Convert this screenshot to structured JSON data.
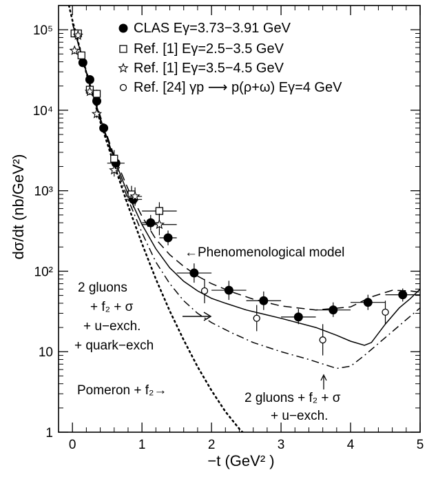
{
  "chart_data": {
    "type": "scatter",
    "ylabel": "dσ/dt (nb/GeV²)",
    "xlabel": "−t  (GeV² )",
    "xlim": [
      -0.2,
      5
    ],
    "ylim": [
      1,
      200000
    ],
    "yscale": "log",
    "x_ticks": [
      {
        "v": 0,
        "label": "0"
      },
      {
        "v": 1,
        "label": "1"
      },
      {
        "v": 2,
        "label": "2"
      },
      {
        "v": 3,
        "label": "3"
      },
      {
        "v": 4,
        "label": "4"
      },
      {
        "v": 5,
        "label": "5"
      }
    ],
    "y_ticks": [
      {
        "v": 1,
        "label": "1"
      },
      {
        "v": 10,
        "label": "10"
      },
      {
        "v": 100,
        "label": "10²"
      },
      {
        "v": 1000,
        "label": "10³"
      },
      {
        "v": 10000,
        "label": "10⁴"
      },
      {
        "v": 100000,
        "label": "10⁵"
      }
    ],
    "legend": [
      {
        "marker": "filled-circle",
        "text": "CLAS Eγ=3.73−3.91 GeV"
      },
      {
        "marker": "open-square",
        "text": "Ref. [1] Eγ=2.5−3.5 GeV"
      },
      {
        "marker": "open-star",
        "text": "Ref. [1] Eγ=3.5−4.5 GeV"
      },
      {
        "marker": "open-circle",
        "text": "Ref. [24] γp ⟶ p(ρ+ω) Eγ=4 GeV"
      }
    ],
    "series": [
      {
        "name": "CLAS Eγ=3.73−3.91 GeV",
        "marker": "filled-circle",
        "points": [
          {
            "x": 0.15,
            "y": 39000,
            "xerr": 0.05,
            "ylo": 35000,
            "yhi": 43000
          },
          {
            "x": 0.25,
            "y": 24000,
            "xerr": 0.05,
            "ylo": 21000,
            "yhi": 27000
          },
          {
            "x": 0.35,
            "y": 13000,
            "xerr": 0.05,
            "ylo": 11500,
            "yhi": 14800
          },
          {
            "x": 0.45,
            "y": 6000,
            "xerr": 0.05,
            "ylo": 5200,
            "yhi": 6900
          },
          {
            "x": 0.625,
            "y": 2200,
            "xerr": 0.125,
            "ylo": 1800,
            "yhi": 2700
          },
          {
            "x": 0.875,
            "y": 780,
            "xerr": 0.125,
            "ylo": 620,
            "yhi": 980
          },
          {
            "x": 1.125,
            "y": 400,
            "xerr": 0.125,
            "ylo": 320,
            "yhi": 500
          },
          {
            "x": 1.375,
            "y": 260,
            "xerr": 0.125,
            "ylo": 210,
            "yhi": 320
          },
          {
            "x": 1.75,
            "y": 95,
            "xerr": 0.25,
            "ylo": 72,
            "yhi": 125
          },
          {
            "x": 2.25,
            "y": 58,
            "xerr": 0.25,
            "ylo": 44,
            "yhi": 76
          },
          {
            "x": 2.75,
            "y": 43,
            "xerr": 0.25,
            "ylo": 33,
            "yhi": 56
          },
          {
            "x": 3.25,
            "y": 27,
            "xerr": 0.25,
            "ylo": 22,
            "yhi": 34
          },
          {
            "x": 3.75,
            "y": 33,
            "xerr": 0.25,
            "ylo": 27,
            "yhi": 41
          },
          {
            "x": 4.25,
            "y": 41,
            "xerr": 0.25,
            "ylo": 33,
            "yhi": 51
          },
          {
            "x": 4.75,
            "y": 51,
            "xerr": 0.25,
            "ylo": 42,
            "yhi": 61
          }
        ]
      },
      {
        "name": "Ref. [1] Eγ=2.5−3.5 GeV",
        "marker": "open-square",
        "points": [
          {
            "x": 0.03,
            "y": 90000,
            "xerr": 0,
            "ylo": 80000,
            "yhi": 100000
          },
          {
            "x": 0.08,
            "y": 90000,
            "xerr": 0,
            "ylo": 80000,
            "yhi": 100000
          },
          {
            "x": 0.13,
            "y": 48000,
            "xerr": 0,
            "ylo": 43000,
            "yhi": 53000
          },
          {
            "x": 0.25,
            "y": 18000,
            "xerr": 0,
            "ylo": 16000,
            "yhi": 20000
          },
          {
            "x": 0.35,
            "y": 16000,
            "xerr": 0,
            "ylo": 14000,
            "yhi": 18000
          },
          {
            "x": 0.6,
            "y": 2500,
            "xerr": 0,
            "ylo": 2000,
            "yhi": 3200
          },
          {
            "x": 0.85,
            "y": 900,
            "xerr": 0,
            "ylo": 700,
            "yhi": 1150
          },
          {
            "x": 1.25,
            "y": 560,
            "xerr": 0.25,
            "ylo": 430,
            "yhi": 720
          }
        ]
      },
      {
        "name": "Ref. [1] Eγ=3.5−4.5 GeV",
        "marker": "open-star",
        "points": [
          {
            "x": 0.03,
            "y": 55000,
            "xerr": 0,
            "ylo": 50000,
            "yhi": 60000
          },
          {
            "x": 0.08,
            "y": 85000,
            "xerr": 0,
            "ylo": 77000,
            "yhi": 93000
          },
          {
            "x": 0.25,
            "y": 17000,
            "xerr": 0,
            "ylo": 15500,
            "yhi": 18500
          },
          {
            "x": 0.35,
            "y": 9000,
            "xerr": 0,
            "ylo": 8000,
            "yhi": 10000
          },
          {
            "x": 0.6,
            "y": 1800,
            "xerr": 0,
            "ylo": 1500,
            "yhi": 2200
          },
          {
            "x": 0.9,
            "y": 850,
            "xerr": 0.1,
            "ylo": 650,
            "yhi": 1100
          },
          {
            "x": 1.25,
            "y": 380,
            "xerr": 0.25,
            "ylo": 280,
            "yhi": 520
          }
        ]
      },
      {
        "name": "Ref. [24] γp ⟶ p(ρ+ω) Eγ=4 GeV",
        "marker": "open-circle",
        "points": [
          {
            "x": 1.9,
            "y": 57,
            "xerr": 0,
            "ylo": 40,
            "yhi": 80
          },
          {
            "x": 2.65,
            "y": 26,
            "xerr": 0,
            "ylo": 18,
            "yhi": 38
          },
          {
            "x": 3.6,
            "y": 14,
            "xerr": 0,
            "ylo": 9,
            "yhi": 22
          },
          {
            "x": 4.5,
            "y": 31,
            "xerr": 0,
            "ylo": 22,
            "yhi": 43
          }
        ]
      }
    ],
    "curves": [
      {
        "id": "solid",
        "style": "solid",
        "points": [
          [
            0.0,
            120000
          ],
          [
            0.2,
            30000
          ],
          [
            0.4,
            8000
          ],
          [
            0.6,
            2500
          ],
          [
            0.8,
            900
          ],
          [
            1.0,
            380
          ],
          [
            1.2,
            190
          ],
          [
            1.4,
            110
          ],
          [
            1.6,
            75
          ],
          [
            1.8,
            57
          ],
          [
            2.0,
            46
          ],
          [
            2.2,
            40
          ],
          [
            2.5,
            33
          ],
          [
            3.0,
            26
          ],
          [
            3.5,
            20
          ],
          [
            3.8,
            16
          ],
          [
            4.0,
            13.5
          ],
          [
            4.2,
            12
          ],
          [
            4.3,
            13
          ],
          [
            4.5,
            22
          ],
          [
            4.7,
            35
          ],
          [
            4.85,
            45
          ],
          [
            5.0,
            60
          ]
        ]
      },
      {
        "id": "dashed",
        "style": "dashed",
        "points": [
          [
            0.0,
            120000
          ],
          [
            0.2,
            31000
          ],
          [
            0.4,
            8500
          ],
          [
            0.6,
            2700
          ],
          [
            0.8,
            1050
          ],
          [
            1.0,
            480
          ],
          [
            1.2,
            250
          ],
          [
            1.4,
            160
          ],
          [
            1.6,
            115
          ],
          [
            1.8,
            87
          ],
          [
            2.0,
            70
          ],
          [
            2.3,
            55
          ],
          [
            2.6,
            45
          ],
          [
            3.0,
            37
          ],
          [
            3.5,
            33
          ],
          [
            4.0,
            36
          ],
          [
            4.3,
            48
          ],
          [
            4.6,
            58
          ],
          [
            4.85,
            57
          ],
          [
            5.0,
            55
          ]
        ]
      },
      {
        "id": "dashdot",
        "style": "dashdot",
        "points": [
          [
            0.0,
            120000
          ],
          [
            0.2,
            29000
          ],
          [
            0.4,
            7600
          ],
          [
            0.6,
            2300
          ],
          [
            0.8,
            780
          ],
          [
            1.0,
            300
          ],
          [
            1.2,
            130
          ],
          [
            1.4,
            70
          ],
          [
            1.6,
            43
          ],
          [
            1.8,
            30
          ],
          [
            2.0,
            23
          ],
          [
            2.3,
            17
          ],
          [
            2.6,
            13
          ],
          [
            3.0,
            10
          ],
          [
            3.4,
            8
          ],
          [
            3.8,
            6.2
          ],
          [
            4.0,
            6.6
          ],
          [
            4.2,
            9
          ],
          [
            4.5,
            15
          ],
          [
            4.8,
            25
          ],
          [
            5.0,
            35
          ]
        ]
      },
      {
        "id": "dotted",
        "style": "dotted",
        "points": [
          [
            -0.05,
            200000
          ],
          [
            0.0,
            130000
          ],
          [
            0.2,
            29000
          ],
          [
            0.4,
            7200
          ],
          [
            0.6,
            2100
          ],
          [
            0.8,
            650
          ],
          [
            1.0,
            220
          ],
          [
            1.2,
            80
          ],
          [
            1.4,
            32
          ],
          [
            1.6,
            14
          ],
          [
            1.8,
            6.5
          ],
          [
            2.0,
            3.3
          ],
          [
            2.2,
            1.8
          ],
          [
            2.4,
            1.1
          ],
          [
            2.5,
            0.9
          ]
        ]
      }
    ],
    "annotations": [
      {
        "id": "phenom",
        "text": "←Phenomenological model"
      },
      {
        "id": "twogluons1",
        "lines": [
          "2 gluons",
          "+ f₂ + σ",
          "+ u−exch.",
          "+ quark−exch"
        ]
      },
      {
        "id": "pomeron",
        "text": "Pomeron + f₂→"
      },
      {
        "id": "twogluons2",
        "lines": [
          "2 gluons + f₂ + σ",
          "+ u−exch."
        ]
      }
    ]
  }
}
